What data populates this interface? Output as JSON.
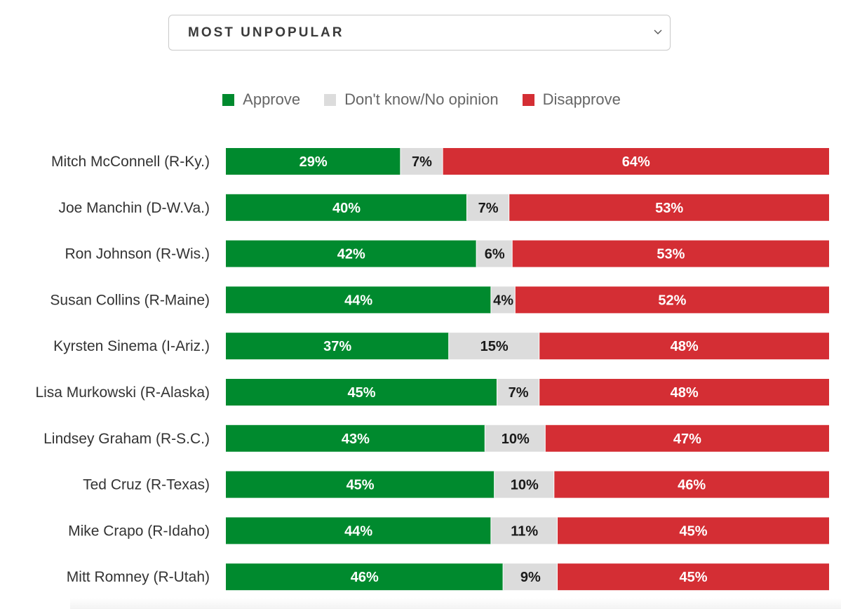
{
  "dropdown": {
    "label": "MOST UNPOPULAR",
    "icon": "chevron-down-icon"
  },
  "colors": {
    "approve": "#008a2e",
    "neutral": "#dcdcdc",
    "disapprove": "#d42e34",
    "label_light": "#ffffff",
    "label_dark": "#1a1a1a"
  },
  "chart_data": {
    "type": "bar",
    "orientation": "horizontal",
    "stacked": true,
    "xlim": [
      0,
      100
    ],
    "legend_position": "top-center",
    "grid": false,
    "categories": [
      "Mitch McConnell (R-Ky.)",
      "Joe Manchin (D-W.Va.)",
      "Ron Johnson (R-Wis.)",
      "Susan Collins (R-Maine)",
      "Kyrsten Sinema (I-Ariz.)",
      "Lisa Murkowski (R-Alaska)",
      "Lindsey Graham (R-S.C.)",
      "Ted Cruz (R-Texas)",
      "Mike Crapo (R-Idaho)",
      "Mitt Romney (R-Utah)"
    ],
    "series": [
      {
        "name": "Approve",
        "values": [
          29,
          40,
          42,
          44,
          37,
          45,
          43,
          45,
          44,
          46
        ]
      },
      {
        "name": "Don't know/No opinion",
        "values": [
          7,
          7,
          6,
          4,
          15,
          7,
          10,
          10,
          11,
          9
        ]
      },
      {
        "name": "Disapprove",
        "values": [
          64,
          53,
          53,
          52,
          48,
          48,
          47,
          46,
          45,
          45
        ]
      }
    ]
  }
}
